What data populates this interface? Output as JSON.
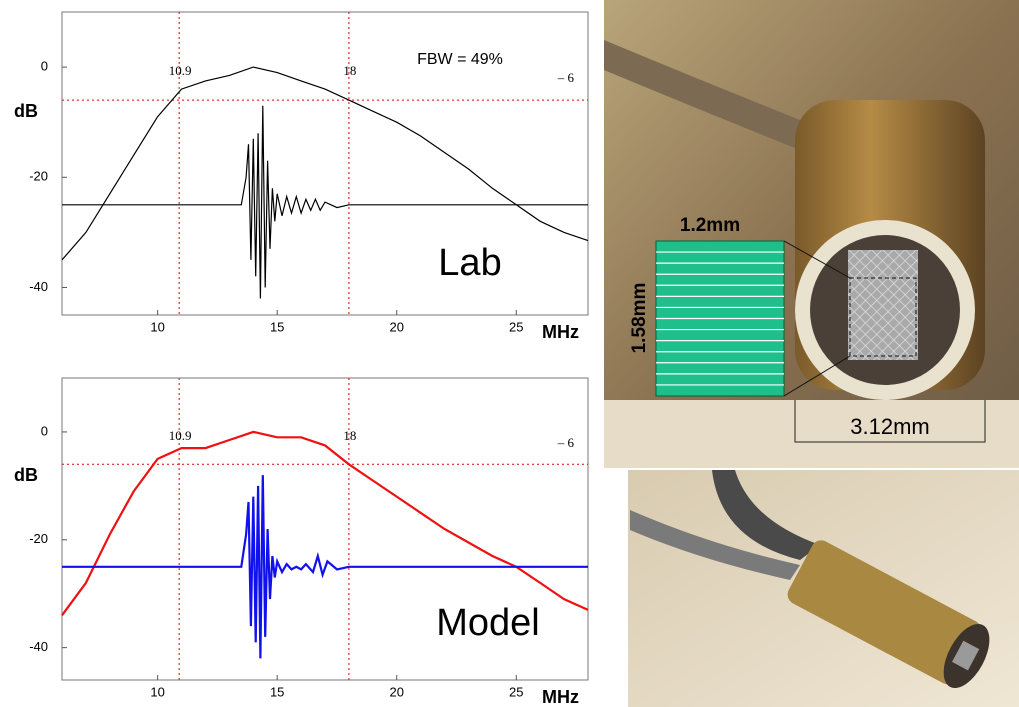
{
  "chart_data": [
    {
      "type": "line",
      "label": "Lab",
      "annotation": "FBW = 49%",
      "ylabel": "dB",
      "xlabel": "MHz",
      "xlim": [
        6,
        28
      ],
      "ylim": [
        -45,
        10
      ],
      "xticks": [
        10,
        15,
        20,
        25
      ],
      "yticks": [
        0,
        -20,
        -40
      ],
      "reference_lines": {
        "x": [
          10.9,
          18
        ],
        "y": {
          "value": -6,
          "label": "– 6"
        },
        "color": "#e00000"
      },
      "series": [
        {
          "color": "#000000",
          "x": [
            6,
            7,
            8,
            9,
            10,
            11,
            12,
            13,
            14,
            15,
            16,
            17,
            18,
            19,
            20,
            21,
            22,
            23,
            24,
            25,
            26,
            27,
            28
          ],
          "values": [
            -35,
            -30,
            -23,
            -16,
            -9,
            -4,
            -2.5,
            -1.5,
            0,
            -1,
            -2.5,
            -4,
            -6,
            -8,
            -10,
            -12.5,
            -15.5,
            -18.5,
            -22,
            -25,
            -28,
            -30,
            -31.5
          ]
        },
        {
          "color": "#000000",
          "x": [
            6,
            13.5,
            13.7,
            13.8,
            13.9,
            14.0,
            14.1,
            14.2,
            14.3,
            14.4,
            14.5,
            14.6,
            14.7,
            14.8,
            14.9,
            15.0,
            15.2,
            15.4,
            15.6,
            15.8,
            16.0,
            16.2,
            16.4,
            16.6,
            16.8,
            17.0,
            17.5,
            18,
            28
          ],
          "values": [
            -25,
            -25,
            -20,
            -14,
            -35,
            -13,
            -38,
            -12,
            -42,
            -7,
            -40,
            -17,
            -33,
            -22,
            -28,
            -23,
            -27,
            -23.5,
            -26.5,
            -23.5,
            -26.5,
            -24,
            -26,
            -24,
            -26,
            -24.5,
            -25.5,
            -25,
            -25
          ]
        }
      ]
    },
    {
      "type": "line",
      "label": "Model",
      "ylabel": "dB",
      "xlabel": "MHz",
      "xlim": [
        6,
        28
      ],
      "ylim": [
        -46,
        10
      ],
      "xticks": [
        10,
        15,
        20,
        25
      ],
      "yticks": [
        0,
        -20,
        -40
      ],
      "reference_lines": {
        "x": [
          10.9,
          18
        ],
        "y": {
          "value": -6,
          "label": "– 6"
        },
        "color": "#e00000"
      },
      "series": [
        {
          "color": "#ee1111",
          "x": [
            6,
            7,
            8,
            9,
            10,
            11,
            12,
            13,
            14,
            15,
            16,
            17,
            18,
            19,
            20,
            21,
            22,
            23,
            24,
            25,
            26,
            27,
            28
          ],
          "values": [
            -34,
            -28,
            -19,
            -11,
            -5,
            -3,
            -3,
            -1.5,
            0,
            -1,
            -1,
            -2.5,
            -6,
            -9,
            -12,
            -15,
            -18,
            -20.5,
            -23,
            -25,
            -28,
            -31,
            -33
          ]
        },
        {
          "color": "#1111ee",
          "x": [
            6,
            13.5,
            13.7,
            13.8,
            13.9,
            14.0,
            14.1,
            14.2,
            14.3,
            14.4,
            14.5,
            14.6,
            14.7,
            14.8,
            14.9,
            15.0,
            15.2,
            15.4,
            15.6,
            15.8,
            16.0,
            16.2,
            16.5,
            16.7,
            16.9,
            17.1,
            17.5,
            18,
            28
          ],
          "values": [
            -25,
            -25,
            -19,
            -13,
            -36,
            -12,
            -39,
            -10,
            -42,
            -8,
            -38,
            -18,
            -31,
            -23,
            -27,
            -24,
            -26,
            -24.5,
            -25.5,
            -25,
            -25.5,
            -24.5,
            -26,
            -23,
            -26.5,
            -24,
            -25.5,
            -25,
            -25
          ]
        }
      ]
    }
  ],
  "photo": {
    "dimensions": [
      "1.2mm",
      "1.58mm",
      "3.12mm"
    ]
  }
}
